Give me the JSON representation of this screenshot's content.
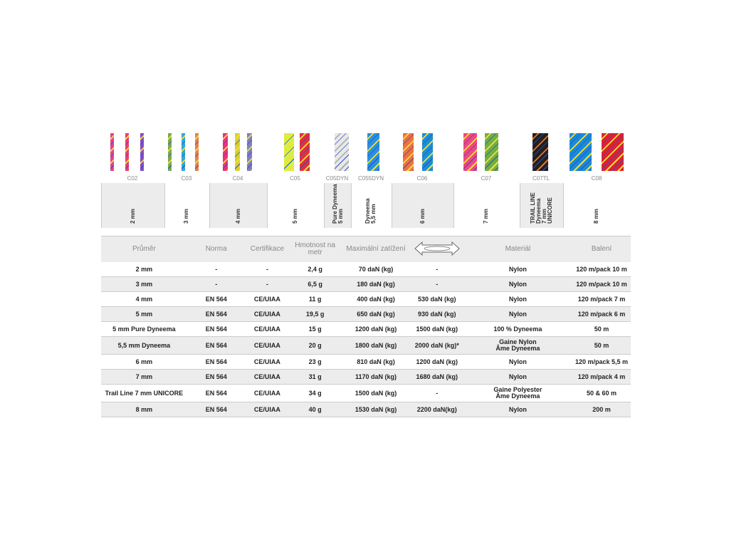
{
  "ropes": [
    {
      "code": "C02",
      "size": "2 mm",
      "colors": [
        "#e8408a",
        "#e84070",
        "#8a4cc0"
      ]
    },
    {
      "code": "C03",
      "size": "3 mm",
      "colors": [
        "#7aaa50",
        "#30a8d8",
        "#e8804a"
      ]
    },
    {
      "code": "C04",
      "size": "4 mm",
      "colors": [
        "#f0307a",
        "#d8d030",
        "#8080c0"
      ]
    },
    {
      "code": "C05",
      "size": "5 mm",
      "colors": [
        "#d8f040",
        "#e03040"
      ]
    },
    {
      "code": "C05DYN",
      "size": "Pure Dyneema\n5 mm",
      "colors": [
        "#e8e8e8"
      ]
    },
    {
      "code": "C055DYN",
      "size": "Dyneema\n5,5 mm",
      "colors": [
        "#2a90e0"
      ]
    },
    {
      "code": "C06",
      "size": "6 mm",
      "colors": [
        "#f07040",
        "#1890d8"
      ]
    },
    {
      "code": "C07",
      "size": "7 mm",
      "colors": [
        "#f04880",
        "#70b040"
      ]
    },
    {
      "code": "C07TL",
      "size": "TRAIL LINE\nDyneema\n7 mm\nUNICORE",
      "colors": [
        "#202020"
      ]
    },
    {
      "code": "C08",
      "size": "8 mm",
      "colors": [
        "#1a8ad8",
        "#e02030"
      ]
    }
  ],
  "table": {
    "headers": [
      "Průměr",
      "Norma",
      "Certifikace",
      "Hmotnost na metr",
      "Maximální zatížení",
      "loop-strength-icon",
      "Materiál",
      "Balení"
    ],
    "rows": [
      [
        "2 mm",
        "-",
        "-",
        "2,4 g",
        "70 daN (kg)",
        "-",
        "Nylon",
        "120 m/pack 10 m"
      ],
      [
        "3 mm",
        "-",
        "-",
        "6,5 g",
        "180 daN (kg)",
        "-",
        "Nylon",
        "120 m/pack 10 m"
      ],
      [
        "4 mm",
        "EN 564",
        "CE/UIAA",
        "11 g",
        "400 daN (kg)",
        "530 daN (kg)",
        "Nylon",
        "120 m/pack 7 m"
      ],
      [
        "5 mm",
        "EN 564",
        "CE/UIAA",
        "19,5 g",
        "650 daN (kg)",
        "930 daN (kg)",
        "Nylon",
        "120 m/pack 6 m"
      ],
      [
        "5 mm Pure Dyneema",
        "EN 564",
        "CE/UIAA",
        "15 g",
        "1200 daN (kg)",
        "1500 daN (kg)",
        "100 % Dyneema",
        "50 m"
      ],
      [
        "5,5 mm Dyneema",
        "EN 564",
        "CE/UIAA",
        "20 g",
        "1800 daN (kg)",
        "2000 daN (kg)*",
        "Gaine Nylon\nÂme Dyneema",
        "50 m"
      ],
      [
        "6 mm",
        "EN 564",
        "CE/UIAA",
        "23 g",
        "810 daN (kg)",
        "1200 daN (kg)",
        "Nylon",
        "120 m/pack 5,5 m"
      ],
      [
        "7 mm",
        "EN 564",
        "CE/UIAA",
        "31 g",
        "1170 daN (kg)",
        "1680 daN (kg)",
        "Nylon",
        "120 m/pack 4 m"
      ],
      [
        "Trail Line 7 mm UNICORE",
        "EN 564",
        "CE/UIAA",
        "34 g",
        "1500 daN (kg)",
        "-",
        "Gaine Polyester\nÂme Dyneema",
        "50 & 60 m"
      ],
      [
        "8 mm",
        "EN 564",
        "CE/UIAA",
        "40 g",
        "1530 daN (kg)",
        "2200 daN(kg)",
        "Nylon",
        "200 m"
      ]
    ]
  }
}
